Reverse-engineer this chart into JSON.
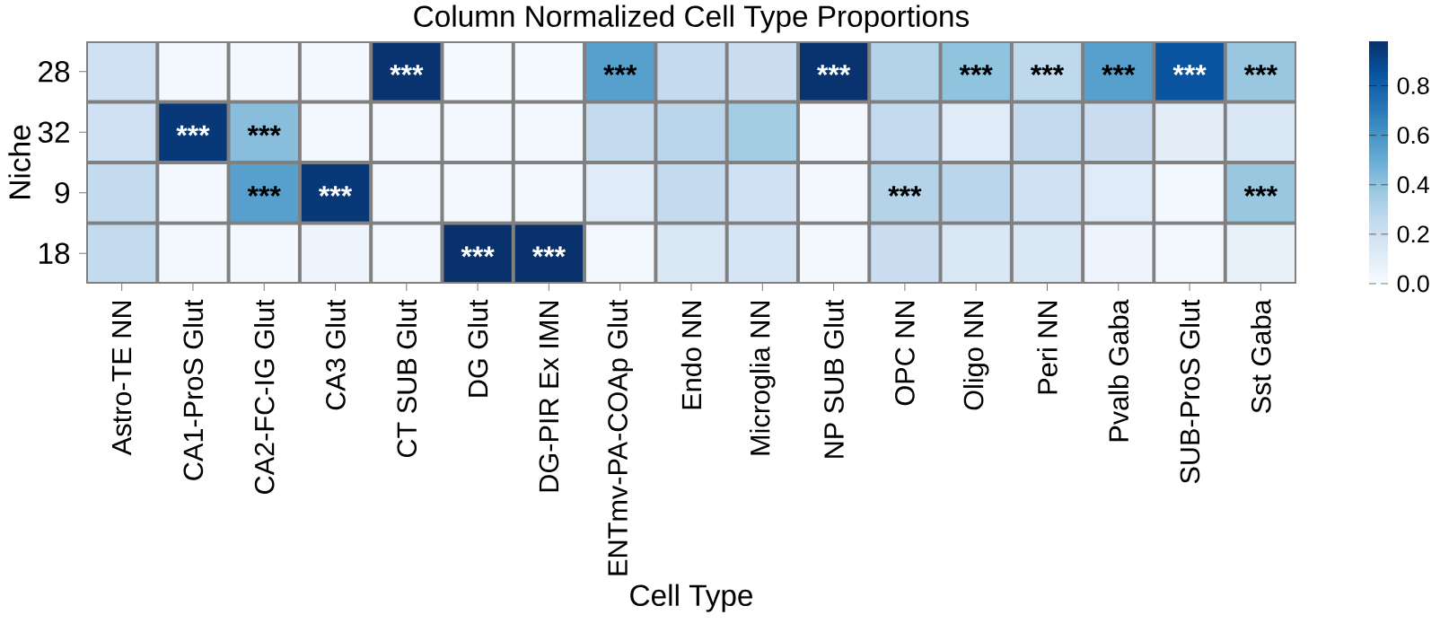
{
  "chart_data": {
    "type": "heatmap",
    "title": "Column Normalized Cell Type Proportions",
    "xlabel": "Cell Type",
    "ylabel": "Niche",
    "categories": [
      "Astro-TE NN",
      "CA1-ProS Glut",
      "CA2-FC-IG Glut",
      "CA3 Glut",
      "CT SUB Glut",
      "DG Glut",
      "DG-PIR Ex IMN",
      "ENTmv-PA-COAp Glut",
      "Endo NN",
      "Microglia NN",
      "NP SUB Glut",
      "OPC NN",
      "Oligo NN",
      "Peri NN",
      "Pvalb Gaba",
      "SUB-ProS Glut",
      "Sst Gaba"
    ],
    "y_categories": [
      "28",
      "32",
      "9",
      "18"
    ],
    "cells": [
      [
        0.2,
        0.02,
        0.02,
        0.02,
        0.97,
        0.01,
        0.01,
        0.55,
        0.25,
        0.22,
        0.97,
        0.3,
        0.4,
        0.27,
        0.55,
        0.85,
        0.38
      ],
      [
        0.2,
        0.95,
        0.42,
        0.03,
        0.02,
        0.02,
        0.02,
        0.25,
        0.28,
        0.35,
        0.02,
        0.25,
        0.12,
        0.25,
        0.22,
        0.1,
        0.15
      ],
      [
        0.25,
        0.02,
        0.55,
        0.95,
        0.02,
        0.02,
        0.02,
        0.12,
        0.25,
        0.2,
        0.02,
        0.3,
        0.28,
        0.2,
        0.12,
        0.02,
        0.38
      ],
      [
        0.25,
        0.02,
        0.02,
        0.05,
        0.02,
        0.98,
        0.98,
        0.02,
        0.15,
        0.17,
        0.02,
        0.22,
        0.15,
        0.15,
        0.05,
        0.03,
        0.08
      ]
    ],
    "cell_labels": [
      [
        null,
        null,
        null,
        null,
        "***",
        null,
        null,
        "***",
        null,
        null,
        "***",
        null,
        "***",
        "***",
        "***",
        "***",
        "***"
      ],
      [
        null,
        "***",
        "***",
        null,
        null,
        null,
        null,
        null,
        null,
        null,
        null,
        null,
        null,
        null,
        null,
        null,
        null
      ],
      [
        null,
        null,
        "***",
        "***",
        null,
        null,
        null,
        null,
        null,
        null,
        null,
        "***",
        null,
        null,
        null,
        null,
        "***"
      ],
      [
        null,
        null,
        null,
        null,
        null,
        "***",
        "***",
        null,
        null,
        null,
        null,
        null,
        null,
        null,
        null,
        null,
        null
      ]
    ],
    "clim": [
      0,
      0.98
    ],
    "cticks": [
      {
        "value": 0,
        "label": "0.0"
      },
      {
        "value": 0.2,
        "label": "0.2"
      },
      {
        "value": 0.4,
        "label": "0.4"
      },
      {
        "value": 0.6,
        "label": "0.6"
      },
      {
        "value": 0.8,
        "label": "0.8"
      }
    ]
  }
}
